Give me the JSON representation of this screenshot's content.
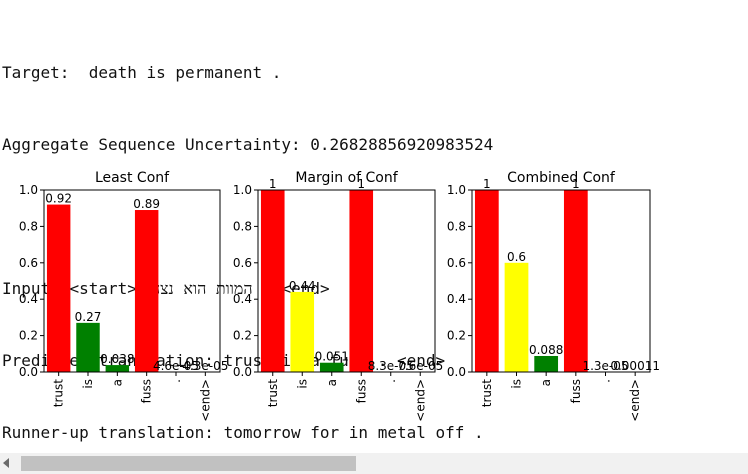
{
  "output": {
    "target_label": "Target:",
    "target_text": "death is permanent .",
    "uncertainty_label": "Aggregate Sequence Uncertainty:",
    "uncertainty_value": "0.26828856920983524",
    "input_label": "Input:",
    "input_text": "<start> המוות הוא נצחי . <end>",
    "predicted_label": "Predicted translation:",
    "predicted_text": "trust is a fuss . <end>",
    "runnerup_label": "Runner-up translation:",
    "runnerup_text": "tomorrow for in metal off ."
  },
  "chart_data": [
    {
      "type": "bar",
      "title": "Least Conf",
      "categories": [
        "trust",
        "is",
        "a",
        "fuss",
        ".",
        "<end>"
      ],
      "values": [
        0.92,
        0.27,
        0.038,
        0.89,
        4.6e-05,
        4.3e-05
      ],
      "data_labels": [
        "0.92",
        "0.27",
        "0.038",
        "0.89",
        "4.6e-05",
        "4.3e-05"
      ],
      "colors": [
        "#ff0000",
        "#008000",
        "#008000",
        "#ff0000",
        "#008000",
        "#008000"
      ],
      "ylim": [
        0,
        1.0
      ],
      "yticks": [
        "0.0",
        "0.2",
        "0.4",
        "0.6",
        "0.8",
        "1.0"
      ]
    },
    {
      "type": "bar",
      "title": "Margin of Conf",
      "categories": [
        "trust",
        "is",
        "a",
        "fuss",
        ".",
        "<end>"
      ],
      "values": [
        1,
        0.44,
        0.051,
        1,
        8.3e-05,
        7.6e-05
      ],
      "data_labels": [
        "1",
        "0.44",
        "0.051",
        "1",
        "8.3e-05",
        "7.6e-05"
      ],
      "colors": [
        "#ff0000",
        "#ffff00",
        "#008000",
        "#ff0000",
        "#008000",
        "#008000"
      ],
      "ylim": [
        0,
        1.0
      ],
      "yticks": [
        "0.0",
        "0.2",
        "0.4",
        "0.6",
        "0.8",
        "1.0"
      ]
    },
    {
      "type": "bar",
      "title": "Combined Conf",
      "categories": [
        "trust",
        "is",
        "a",
        "fuss",
        ".",
        "<end>"
      ],
      "values": [
        1,
        0.6,
        0.088,
        1,
        1.3e-05,
        0.00011
      ],
      "data_labels": [
        "1",
        "0.6",
        "0.088",
        "1",
        "1.3e-05",
        "0.00011"
      ],
      "colors": [
        "#ff0000",
        "#ffff00",
        "#008000",
        "#ff0000",
        "#008000",
        "#008000"
      ],
      "ylim": [
        0,
        1.0
      ],
      "yticks": [
        "0.0",
        "0.2",
        "0.4",
        "0.6",
        "0.8",
        "1.0"
      ]
    }
  ]
}
